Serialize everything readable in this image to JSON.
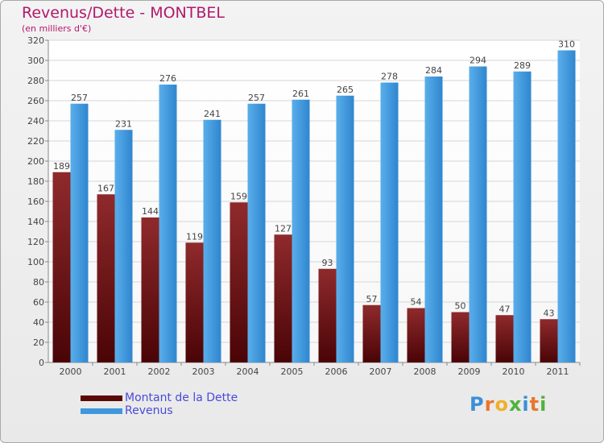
{
  "chart_data": {
    "type": "bar",
    "title": "Revenus/Dette - MONTBEL",
    "subtitle": "(en milliers d'€)",
    "categories": [
      "2000",
      "2001",
      "2002",
      "2003",
      "2004",
      "2005",
      "2006",
      "2007",
      "2008",
      "2009",
      "2010",
      "2011"
    ],
    "series": [
      {
        "name": "Montant de la Dette",
        "color": "#6e0f10",
        "values": [
          189,
          167,
          144,
          119,
          159,
          127,
          93,
          57,
          54,
          50,
          47,
          43
        ]
      },
      {
        "name": "Revenus",
        "color": "#3f97dc",
        "values": [
          257,
          231,
          276,
          241,
          257,
          261,
          265,
          278,
          284,
          294,
          289,
          310
        ]
      }
    ],
    "ylim": [
      0,
      320
    ],
    "yticks": [
      0,
      20,
      40,
      60,
      80,
      100,
      120,
      140,
      160,
      180,
      200,
      220,
      240,
      260,
      280,
      300,
      320
    ],
    "grid": true,
    "legend_position": "bottom-left"
  },
  "logo": {
    "text": "Proxiti"
  }
}
